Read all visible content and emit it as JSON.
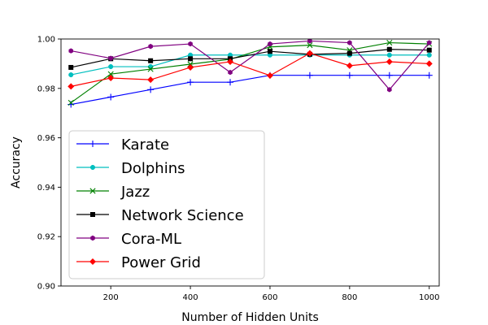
{
  "chart_data": {
    "type": "line",
    "xlabel": "Number of Hidden Units",
    "ylabel": "Accuracy",
    "xlim": [
      75,
      1025
    ],
    "ylim": [
      0.9,
      1.0
    ],
    "xticks": [
      200,
      400,
      600,
      800,
      1000
    ],
    "xtick_labels": [
      "200",
      "400",
      "600",
      "800",
      "1000"
    ],
    "yticks": [
      0.9,
      0.92,
      0.94,
      0.96,
      0.98,
      1.0
    ],
    "ytick_labels": [
      "0.90",
      "0.92",
      "0.94",
      "0.96",
      "0.98",
      "1.00"
    ],
    "legend_position": "lower-left",
    "grid": false,
    "x": [
      100,
      200,
      300,
      400,
      500,
      600,
      700,
      800,
      900,
      1000
    ],
    "series": [
      {
        "name": "Karate",
        "color": "#0000ff",
        "marker": "plus",
        "values": [
          0.9735,
          0.9765,
          0.9795,
          0.9825,
          0.9825,
          0.9853,
          0.9853,
          0.9853,
          0.9853,
          0.9853
        ]
      },
      {
        "name": "Dolphins",
        "color": "#00bfbf",
        "marker": "circle",
        "values": [
          0.9855,
          0.9888,
          0.9888,
          0.9935,
          0.9935,
          0.9935,
          0.9935,
          0.9935,
          0.9935,
          0.9935
        ]
      },
      {
        "name": "Jazz",
        "color": "#008000",
        "marker": "x",
        "values": [
          0.9742,
          0.9858,
          0.9878,
          0.9898,
          0.9918,
          0.9968,
          0.9975,
          0.9955,
          0.9985,
          0.998
        ]
      },
      {
        "name": "Network Science",
        "color": "#000000",
        "marker": "square",
        "values": [
          0.9885,
          0.992,
          0.9912,
          0.992,
          0.992,
          0.995,
          0.9938,
          0.9942,
          0.9958,
          0.9955
        ]
      },
      {
        "name": "Cora-ML",
        "color": "#800080",
        "marker": "hexagon",
        "values": [
          0.9952,
          0.9922,
          0.997,
          0.998,
          0.9865,
          0.998,
          0.9992,
          0.9985,
          0.9795,
          0.9985
        ]
      },
      {
        "name": "Power Grid",
        "color": "#ff0000",
        "marker": "diamond",
        "values": [
          0.9808,
          0.9842,
          0.9835,
          0.9885,
          0.9908,
          0.9852,
          0.9942,
          0.9892,
          0.9908,
          0.99
        ]
      }
    ]
  }
}
